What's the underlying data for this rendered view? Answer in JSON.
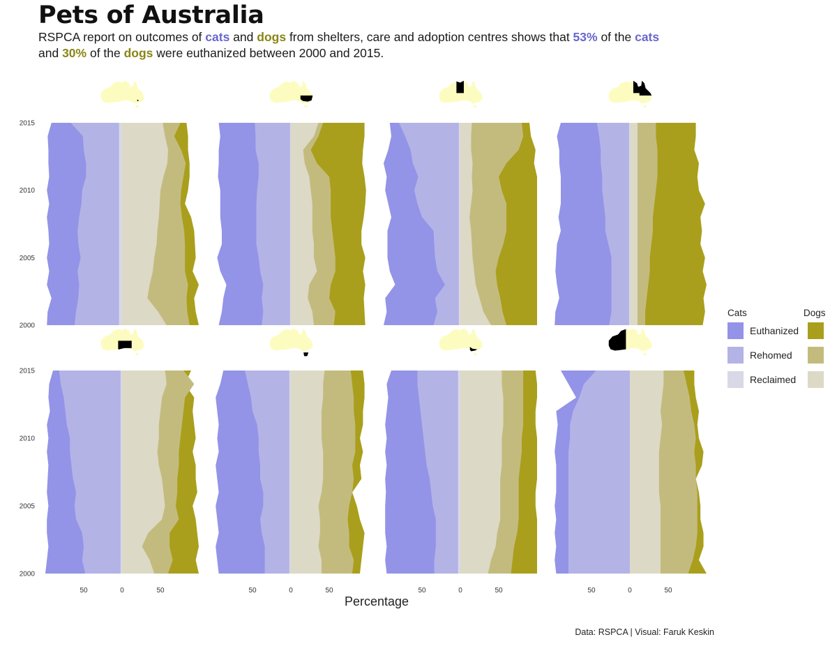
{
  "title": "Pets of Australia",
  "subtitle": {
    "p1": "RSPCA report on outcomes of ",
    "cats1": "cats",
    "p2": " and ",
    "dogs1": "dogs",
    "p3": " from shelters, care and adoption centres shows that ",
    "pct_cats": "53%",
    "p4": " of the ",
    "cats2": "cats",
    "p5": "and ",
    "pct_dogs": "30%",
    "p6": " of the ",
    "dogs2": "dogs",
    "p7": " were euthanized between 2000 and 2015."
  },
  "caption": "Data: RSPCA | Visual: Faruk Keskin",
  "colors": {
    "cat_euthanized": "#9393e8",
    "cat_rehomed": "#b3b3e6",
    "cat_reclaimed": "#d8d8e6",
    "dog_euthanized": "#a99f1c",
    "dog_rehomed": "#c3bb7e",
    "dog_reclaimed": "#dcd9c6",
    "map_fill": "#fdfcc0",
    "map_highlight": "#000000"
  },
  "chart_data": {
    "type": "area",
    "orientation": "diverging-horizontal",
    "xlabel": "Percentage",
    "x_ticks": [
      "50",
      "0",
      "50"
    ],
    "y_ticks": [
      "2000",
      "2005",
      "2010",
      "2015"
    ],
    "years": [
      2000,
      2001,
      2002,
      2003,
      2004,
      2005,
      2006,
      2007,
      2008,
      2009,
      2010,
      2011,
      2012,
      2013,
      2014,
      2015
    ],
    "legend": {
      "cats_title": "Cats",
      "dogs_title": "Dogs",
      "entries": [
        "Euthanized",
        "Rehomed",
        "Reclaimed"
      ]
    },
    "panels": [
      {
        "highlight": "ACT",
        "cats": {
          "reclaimed": [
            4,
            4,
            4,
            4,
            4,
            4,
            4,
            4,
            4,
            4,
            4,
            4,
            4,
            4,
            4,
            4
          ],
          "rehomed": [
            62,
            60,
            57,
            56,
            58,
            54,
            57,
            58,
            56,
            53,
            52,
            47,
            47,
            50,
            51,
            67
          ],
          "euthanized": [
            98,
            97,
            92,
            98,
            95,
            98,
            95,
            96,
            98,
            95,
            98,
            95,
            96,
            96,
            97,
            92
          ]
        },
        "dogs": {
          "reclaimed": [
            58,
            47,
            33,
            36,
            40,
            42,
            45,
            46,
            48,
            49,
            50,
            54,
            59,
            60,
            56,
            53
          ],
          "rehomed": [
            88,
            85,
            84,
            86,
            82,
            82,
            82,
            81,
            78,
            76,
            77,
            80,
            83,
            77,
            68,
            76
          ],
          "euthanized": [
            100,
            96,
            94,
            100,
            92,
            96,
            95,
            94,
            90,
            82,
            86,
            88,
            88,
            86,
            86,
            84
          ]
        }
      },
      {
        "highlight": "NSW",
        "cats": {
          "reclaimed": [
            1,
            1,
            1,
            1,
            1,
            1,
            1,
            1,
            1,
            1,
            1,
            1,
            1,
            1,
            1,
            1
          ],
          "rehomed": [
            38,
            36,
            38,
            36,
            40,
            42,
            45,
            45,
            45,
            45,
            44,
            42,
            42,
            46,
            46,
            47
          ],
          "euthanized": [
            94,
            90,
            88,
            84,
            92,
            96,
            90,
            90,
            92,
            92,
            92,
            95,
            94,
            94,
            92,
            94
          ]
        },
        "dogs": {
          "reclaimed": [
            30,
            28,
            22,
            24,
            34,
            30,
            30,
            28,
            28,
            28,
            26,
            24,
            18,
            16,
            30,
            36
          ],
          "rehomed": [
            56,
            58,
            50,
            52,
            58,
            58,
            56,
            54,
            52,
            52,
            52,
            50,
            34,
            26,
            36,
            42
          ],
          "euthanized": [
            97,
            96,
            95,
            97,
            94,
            97,
            92,
            92,
            95,
            97,
            98,
            96,
            93,
            94,
            96,
            96
          ]
        }
      },
      {
        "highlight": "NT",
        "cats": {
          "reclaimed": [
            2,
            2,
            2,
            2,
            2,
            2,
            2,
            2,
            2,
            2,
            2,
            2,
            2,
            2,
            2,
            2
          ],
          "rehomed": [
            35,
            30,
            33,
            20,
            30,
            33,
            34,
            35,
            50,
            56,
            60,
            55,
            62,
            65,
            72,
            80
          ],
          "euthanized": [
            100,
            96,
            98,
            85,
            92,
            95,
            95,
            95,
            90,
            94,
            98,
            96,
            100,
            94,
            90,
            92
          ]
        },
        "dogs": {
          "reclaimed": [
            40,
            30,
            25,
            20,
            18,
            16,
            15,
            14,
            12,
            14,
            16,
            15,
            16,
            14,
            14,
            15
          ],
          "rehomed": [
            60,
            55,
            52,
            48,
            46,
            50,
            56,
            60,
            60,
            60,
            54,
            50,
            60,
            76,
            82,
            80
          ],
          "euthanized": [
            100,
            100,
            100,
            100,
            100,
            100,
            100,
            100,
            100,
            100,
            100,
            100,
            96,
            98,
            92,
            90
          ]
        }
      },
      {
        "highlight": "QLD",
        "cats": {
          "reclaimed": [
            1,
            1,
            1,
            1,
            1,
            1,
            1,
            1,
            1,
            1,
            1,
            1,
            1,
            1,
            1,
            1
          ],
          "rehomed": [
            27,
            24,
            24,
            24,
            24,
            24,
            28,
            32,
            32,
            34,
            36,
            36,
            38,
            38,
            40,
            43
          ],
          "euthanized": [
            98,
            97,
            92,
            95,
            97,
            96,
            95,
            90,
            93,
            90,
            90,
            90,
            92,
            92,
            95,
            90
          ]
        },
        "dogs": {
          "reclaimed": [
            10,
            10,
            10,
            10,
            10,
            10,
            10,
            10,
            10,
            10,
            10,
            10,
            10,
            10,
            10,
            10
          ],
          "rehomed": [
            20,
            20,
            22,
            24,
            26,
            26,
            28,
            30,
            30,
            32,
            34,
            36,
            36,
            36,
            34,
            34
          ],
          "euthanized": [
            95,
            98,
            96,
            100,
            95,
            98,
            92,
            94,
            92,
            98,
            90,
            88,
            90,
            84,
            86,
            86
          ]
        }
      },
      {
        "highlight": "SA",
        "cats": {
          "reclaimed": [
            2,
            2,
            2,
            2,
            2,
            2,
            2,
            2,
            2,
            2,
            2,
            2,
            2,
            2,
            2,
            2
          ],
          "rehomed": [
            48,
            52,
            50,
            52,
            60,
            62,
            60,
            64,
            66,
            68,
            68,
            72,
            74,
            76,
            80,
            82
          ],
          "euthanized": [
            100,
            98,
            96,
            98,
            98,
            96,
            98,
            97,
            96,
            98,
            96,
            98,
            94,
            96,
            95,
            90
          ]
        },
        "dogs": {
          "reclaimed": [
            42,
            36,
            26,
            34,
            52,
            56,
            54,
            52,
            48,
            46,
            48,
            48,
            50,
            52,
            58,
            56
          ],
          "rehomed": [
            60,
            66,
            62,
            62,
            74,
            70,
            72,
            72,
            74,
            74,
            76,
            78,
            80,
            82,
            94,
            80
          ],
          "euthanized": [
            100,
            96,
            100,
            98,
            96,
            92,
            98,
            96,
            96,
            92,
            96,
            94,
            92,
            94,
            82,
            90
          ]
        }
      },
      {
        "highlight": "TAS",
        "cats": {
          "reclaimed": [
            2,
            2,
            2,
            2,
            2,
            2,
            2,
            2,
            2,
            2,
            2,
            2,
            2,
            2,
            2,
            2
          ],
          "rehomed": [
            34,
            34,
            34,
            38,
            40,
            36,
            36,
            40,
            40,
            42,
            42,
            44,
            50,
            52,
            56,
            60
          ],
          "euthanized": [
            94,
            96,
            98,
            94,
            96,
            98,
            94,
            96,
            98,
            94,
            96,
            94,
            96,
            98,
            92,
            88
          ]
        },
        "dogs": {
          "reclaimed": [
            40,
            40,
            36,
            38,
            38,
            36,
            40,
            42,
            42,
            42,
            40,
            40,
            40,
            42,
            42,
            44
          ],
          "rehomed": [
            80,
            82,
            76,
            76,
            74,
            76,
            80,
            82,
            80,
            84,
            84,
            84,
            82,
            82,
            80,
            78
          ],
          "euthanized": [
            90,
            92,
            94,
            96,
            90,
            86,
            80,
            92,
            90,
            94,
            90,
            94,
            94,
            96,
            96,
            94
          ]
        }
      },
      {
        "highlight": "VIC",
        "cats": {
          "reclaimed": [
            3,
            3,
            3,
            3,
            3,
            3,
            3,
            3,
            3,
            3,
            3,
            3,
            3,
            3,
            3,
            3
          ],
          "rehomed": [
            34,
            34,
            32,
            32,
            32,
            36,
            38,
            40,
            44,
            46,
            48,
            50,
            52,
            54,
            56,
            56
          ],
          "euthanized": [
            96,
            98,
            96,
            98,
            98,
            98,
            97,
            98,
            96,
            98,
            96,
            98,
            96,
            94,
            96,
            90
          ]
        },
        "dogs": {
          "reclaimed": [
            36,
            40,
            46,
            48,
            52,
            52,
            52,
            52,
            54,
            54,
            54,
            56,
            56,
            56,
            54,
            54
          ],
          "rehomed": [
            66,
            68,
            70,
            74,
            76,
            76,
            76,
            76,
            78,
            80,
            80,
            82,
            82,
            82,
            82,
            82
          ],
          "euthanized": [
            100,
            100,
            100,
            100,
            100,
            98,
            98,
            100,
            100,
            100,
            100,
            98,
            98,
            100,
            100,
            98
          ]
        }
      },
      {
        "highlight": "WA",
        "cats": {
          "reclaimed": [
            0,
            0,
            0,
            0,
            0,
            0,
            0,
            0,
            0,
            0,
            0,
            0,
            0,
            0,
            0,
            0
          ],
          "rehomed": [
            80,
            80,
            80,
            80,
            80,
            80,
            80,
            80,
            80,
            80,
            78,
            78,
            74,
            66,
            60,
            44
          ],
          "euthanized": [
            96,
            98,
            96,
            98,
            96,
            98,
            96,
            96,
            96,
            98,
            96,
            94,
            96,
            70,
            80,
            90
          ]
        },
        "dogs": {
          "reclaimed": [
            40,
            40,
            40,
            40,
            40,
            40,
            38,
            38,
            38,
            38,
            40,
            42,
            40,
            42,
            44,
            44
          ],
          "rehomed": [
            76,
            82,
            86,
            88,
            88,
            88,
            88,
            86,
            86,
            84,
            86,
            84,
            80,
            78,
            74,
            70
          ],
          "euthanized": [
            100,
            90,
            96,
            96,
            92,
            92,
            90,
            86,
            94,
            96,
            90,
            88,
            90,
            86,
            84,
            84
          ]
        }
      }
    ]
  }
}
